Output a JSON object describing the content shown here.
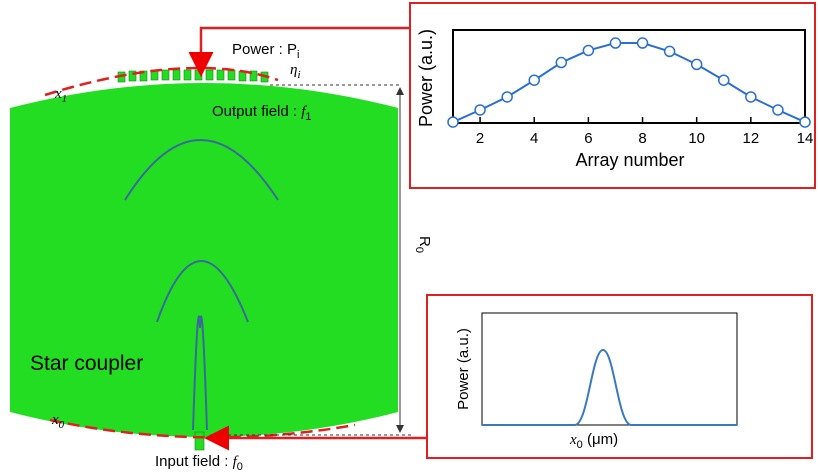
{
  "labels": {
    "power": "Power : P",
    "power_sub": "i",
    "eta": "η",
    "eta_sub": "i",
    "x1": "x",
    "x1_sub": "1",
    "output": "Output field : ",
    "output_f": "f",
    "output_sub": "1",
    "r0": "R",
    "r0_sub": "0",
    "star": "Star coupler",
    "x0": "x",
    "x0_sub": "0",
    "input": "Input field : ",
    "input_f": "f",
    "input_sub": "0"
  },
  "chart_data": {
    "type": "line",
    "xlabel": "Array number",
    "ylabel": "Power (a.u.)",
    "x": [
      1,
      2,
      3,
      4,
      5,
      6,
      7,
      8,
      9,
      10,
      11,
      12,
      13,
      14
    ],
    "series": [
      {
        "color": "#2a6fd6",
        "values": [
          0.01,
          0.14,
          0.28,
          0.46,
          0.65,
          0.78,
          0.86,
          0.86,
          0.77,
          0.63,
          0.46,
          0.28,
          0.14,
          0.01
        ]
      }
    ],
    "xlim": [
      1,
      14
    ],
    "ylim": [
      0,
      1
    ],
    "xticks": [
      2,
      4,
      6,
      8,
      10,
      12,
      14
    ]
  },
  "lower_plot": {
    "ylabel": "Power (a.u.)",
    "xlabel_var": "x",
    "xlabel_sub": "0",
    "xlabel_unit": " (μm)"
  }
}
